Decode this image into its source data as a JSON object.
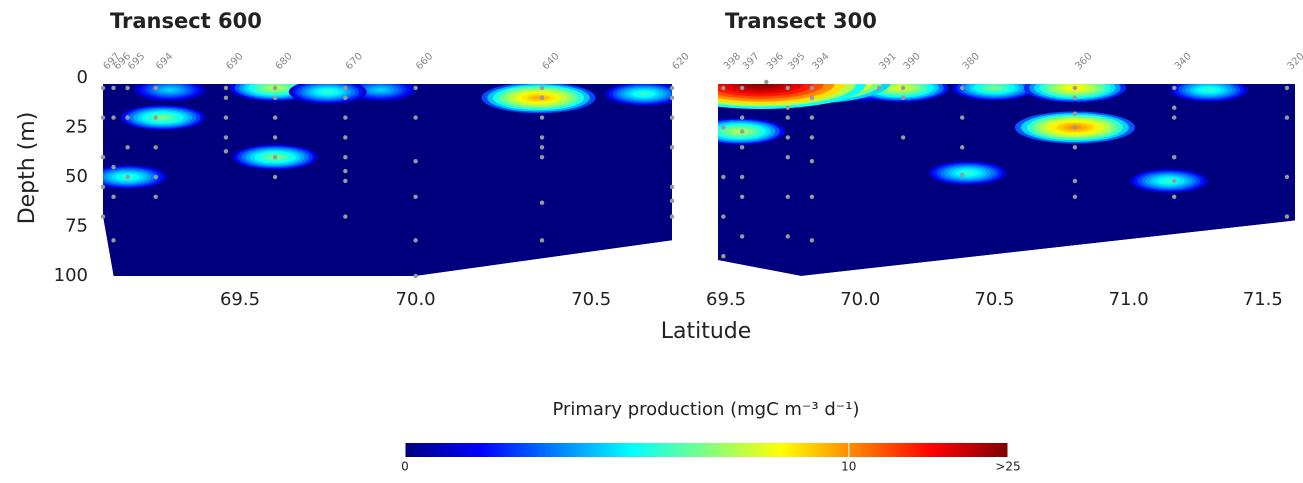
{
  "chart_data": [
    {
      "type": "contour",
      "title": "Transect 600",
      "xlim": [
        69.11,
        70.73
      ],
      "xticks": [
        69.5,
        {
          "value": 70.0,
          "label": "70.0"
        },
        70.5
      ],
      "ylim": [
        100,
        0
      ],
      "yticks": [
        0,
        25,
        50,
        75,
        100
      ],
      "domain": [
        [
          69.11,
          3
        ],
        [
          70.73,
          3
        ],
        [
          70.73,
          82
        ],
        [
          70.0,
          100
        ],
        [
          69.14,
          100
        ],
        [
          69.11,
          70
        ]
      ],
      "stations": [
        {
          "label": "697",
          "lat": 69.11,
          "depths": [
            5,
            20,
            40,
            55,
            70
          ]
        },
        {
          "label": "696",
          "lat": 69.14,
          "depths": [
            5,
            20,
            45,
            60,
            82
          ]
        },
        {
          "label": "695",
          "lat": 69.18,
          "depths": [
            5,
            20,
            35,
            50
          ]
        },
        {
          "label": "694",
          "lat": 69.26,
          "depths": [
            5,
            20,
            35,
            50,
            60
          ]
        },
        {
          "label": "690",
          "lat": 69.46,
          "depths": [
            5,
            10,
            20,
            30,
            37
          ]
        },
        {
          "label": "680",
          "lat": 69.6,
          "depths": [
            5,
            10,
            20,
            30,
            40,
            50
          ]
        },
        {
          "label": "670",
          "lat": 69.8,
          "depths": [
            5,
            10,
            20,
            30,
            40,
            47,
            52,
            70
          ]
        },
        {
          "label": "660",
          "lat": 70.0,
          "depths": [
            5,
            20,
            42,
            60,
            82,
            100
          ]
        },
        {
          "label": "640",
          "lat": 70.36,
          "depths": [
            5,
            10,
            20,
            30,
            35,
            40,
            63,
            82
          ]
        },
        {
          "label": "620",
          "lat": 70.73,
          "depths": [
            5,
            10,
            20,
            35,
            55,
            62,
            70
          ]
        }
      ],
      "hotspots": [
        {
          "lat": 69.3,
          "depth": 6,
          "value": 2
        },
        {
          "lat": 69.9,
          "depth": 6,
          "value": 2
        },
        {
          "lat": 70.35,
          "depth": 10,
          "value": 9
        },
        {
          "lat": 69.6,
          "depth": 5,
          "value": 5
        },
        {
          "lat": 69.75,
          "depth": 7,
          "value": 3
        },
        {
          "lat": 69.28,
          "depth": 20,
          "value": 4
        },
        {
          "lat": 69.6,
          "depth": 40,
          "value": 4
        },
        {
          "lat": 69.18,
          "depth": 50,
          "value": 3
        },
        {
          "lat": 70.65,
          "depth": 8,
          "value": 3
        }
      ]
    },
    {
      "type": "contour",
      "title": "Transect 300",
      "xlim": [
        69.47,
        71.62
      ],
      "xticks": [
        69.5,
        {
          "value": 70.0,
          "label": "70.0"
        },
        70.5,
        {
          "value": 71.0,
          "label": "71.0"
        },
        71.5
      ],
      "ylim": [
        100,
        0
      ],
      "domain": [
        [
          69.47,
          3
        ],
        [
          71.62,
          3
        ],
        [
          71.62,
          72
        ],
        [
          69.78,
          100
        ],
        [
          69.47,
          92
        ]
      ],
      "stations": [
        {
          "label": "398",
          "lat": 69.49,
          "depths": [
            5,
            25,
            50,
            70,
            90
          ]
        },
        {
          "label": "397",
          "lat": 69.56,
          "depths": [
            5,
            20,
            27,
            35,
            50,
            60,
            80
          ]
        },
        {
          "label": "396",
          "lat": 69.65,
          "depths": [
            2
          ]
        },
        {
          "label": "395",
          "lat": 69.73,
          "depths": [
            5,
            15,
            20,
            30,
            40,
            60,
            80
          ]
        },
        {
          "label": "394",
          "lat": 69.82,
          "depths": [
            5,
            10,
            20,
            30,
            42,
            60,
            82
          ]
        },
        {
          "label": "391",
          "lat": 70.07,
          "depths": [
            5
          ]
        },
        {
          "label": "390",
          "lat": 70.16,
          "depths": [
            5,
            10,
            30
          ]
        },
        {
          "label": "380",
          "lat": 70.38,
          "depths": [
            5,
            20,
            35,
            49
          ]
        },
        {
          "label": "360",
          "lat": 70.8,
          "depths": [
            5,
            10,
            18,
            25,
            35,
            52,
            60
          ]
        },
        {
          "label": "340",
          "lat": 71.17,
          "depths": [
            5,
            15,
            20,
            40,
            52,
            60
          ]
        },
        {
          "label": "320",
          "lat": 71.59,
          "depths": [
            5,
            20,
            50,
            70
          ]
        }
      ],
      "hotspots": [
        {
          "lat": 70.0,
          "depth": 6,
          "value": 2
        },
        {
          "lat": 71.3,
          "depth": 6,
          "value": 3
        },
        {
          "lat": 70.4,
          "depth": 48,
          "value": 3
        },
        {
          "lat": 70.5,
          "depth": 5,
          "value": 4
        },
        {
          "lat": 71.15,
          "depth": 52,
          "value": 3
        },
        {
          "lat": 69.55,
          "depth": 27,
          "value": 5
        },
        {
          "lat": 70.15,
          "depth": 5,
          "value": 6
        },
        {
          "lat": 70.8,
          "depth": 5,
          "value": 7
        },
        {
          "lat": 70.8,
          "depth": 25,
          "value": 10
        },
        {
          "lat": 69.78,
          "depth": 2,
          "value": 20
        },
        {
          "lat": 69.63,
          "depth": 3,
          "value": 25
        }
      ]
    }
  ],
  "ylabel": "Depth (m)",
  "xlabel": "Latitude",
  "colorbar": {
    "title": "Primary production (mgC m⁻³ d⁻¹)",
    "clim": [
      0,
      25
    ],
    "ticks": [
      0,
      10,
      {
        "value": 25,
        "label": ">25"
      }
    ],
    "colors": [
      "#00007f",
      "#0000ff",
      "#007fff",
      "#00ffff",
      "#7fff7f",
      "#ffff00",
      "#ff7f00",
      "#ff0000",
      "#7f0000"
    ]
  }
}
